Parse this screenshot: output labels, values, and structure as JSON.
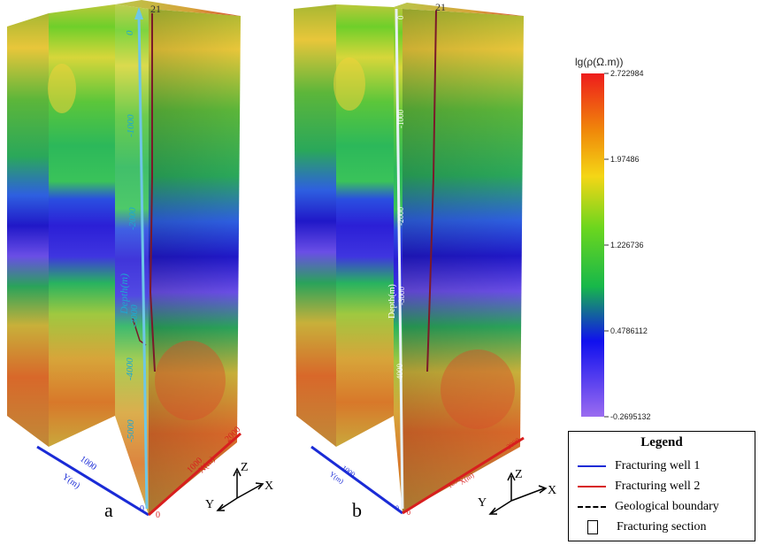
{
  "panels": [
    {
      "label": "a",
      "well_number": "21",
      "depth_label": "Depth(m)",
      "depth_ticks": [
        "0",
        "-1000",
        "-2000",
        "-3000",
        "-4000",
        "-5000"
      ],
      "x_axis_label": "X(m)",
      "x_ticks": [
        "1000",
        "2000"
      ],
      "y_axis_label": "Y(m)",
      "y_ticks": [
        "1000"
      ],
      "origin_ticks": [
        "0",
        "0"
      ]
    },
    {
      "label": "b",
      "well_number": "21",
      "depth_label": "Depth(m)",
      "depth_ticks": [
        "0",
        "-1000",
        "-2000",
        "-3000",
        "-4000"
      ],
      "x_axis_label": "X(m)",
      "x_ticks": [
        "1000",
        "2000"
      ],
      "y_axis_label": "Y(m)",
      "y_ticks": [
        "1000"
      ],
      "origin_ticks": [
        "0",
        "0"
      ]
    }
  ],
  "axis_triad": {
    "x": "X",
    "y": "Y",
    "z": "Z"
  },
  "colorbar": {
    "title": "lg(ρ(Ω.m))",
    "ticks": [
      "2.722984",
      "1.97486",
      "1.226736",
      "0.4786112",
      "-0.2695132"
    ],
    "colors": [
      "#ee1c1c",
      "#f08a0a",
      "#f4d616",
      "#6cd61e",
      "#17b84a",
      "#1010ee",
      "#9b6cf0"
    ]
  },
  "legend": {
    "title": "Legend",
    "items": [
      {
        "label": "Fracturing well 1",
        "style": "line",
        "color": "#1a2bd6"
      },
      {
        "label": "Fracturing well 2",
        "style": "line",
        "color": "#d81e1e"
      },
      {
        "label": "Geological boundary",
        "style": "dashed",
        "color": "#000000"
      },
      {
        "label": "Fracturing section",
        "style": "rect",
        "color": "#000000"
      }
    ]
  }
}
